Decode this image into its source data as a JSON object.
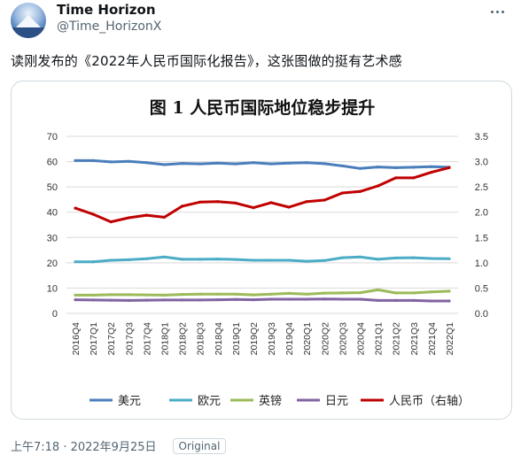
{
  "tweet": {
    "display_name": "Time Horizon",
    "handle": "@Time_HorizonX",
    "text": "读刚发布的《2022年人民币国际化报告》，这张图做的挺有艺术感",
    "time": "上午7:18 · 2022年9月25日",
    "source_badge": "Original",
    "more_icon": "ellipsis-icon"
  },
  "chart_data": {
    "type": "line",
    "title": "图 1  人民币国际地位稳步提升",
    "xlabel": "",
    "ylabel": "",
    "y_left_ticks": [
      "70",
      "60",
      "50",
      "40",
      "30",
      "20",
      "10",
      "0"
    ],
    "y_right_ticks": [
      "3.5",
      "3.0",
      "2.5",
      "2.0",
      "1.5",
      "1.0",
      "0.5",
      "0.0"
    ],
    "ylim_left": [
      0,
      70
    ],
    "ylim_right": [
      0,
      3.5
    ],
    "grid": true,
    "legend_position": "bottom",
    "x": [
      "2016Q4",
      "2017Q1",
      "2017Q2",
      "2017Q3",
      "2017Q4",
      "2018Q1",
      "2018Q2",
      "2018Q3",
      "2018Q4",
      "2019Q1",
      "2019Q2",
      "2019Q3",
      "2019Q4",
      "2020Q1",
      "2020Q2",
      "2020Q3",
      "2020Q4",
      "2021Q1",
      "2021Q2",
      "2021Q3",
      "2021Q4",
      "2022Q1"
    ],
    "series": [
      {
        "name": "美元",
        "axis": "left",
        "color": "#4a7ebb",
        "values": [
          60.4,
          60.4,
          59.9,
          60.1,
          59.6,
          58.8,
          59.3,
          59.1,
          59.4,
          59.1,
          59.6,
          59.1,
          59.4,
          59.6,
          59.2,
          58.3,
          57.3,
          57.9,
          57.6,
          57.8,
          58.0,
          57.8
        ]
      },
      {
        "name": "欧元",
        "axis": "left",
        "color": "#4bacc6",
        "values": [
          20.4,
          20.4,
          21.0,
          21.2,
          21.6,
          22.3,
          21.4,
          21.4,
          21.5,
          21.3,
          21.0,
          21.0,
          21.0,
          20.6,
          20.9,
          22.0,
          22.3,
          21.4,
          21.9,
          22.0,
          21.7,
          21.6
        ]
      },
      {
        "name": "英镑",
        "axis": "left",
        "color": "#9bbb59",
        "values": [
          7.2,
          7.2,
          7.4,
          7.4,
          7.3,
          7.2,
          7.5,
          7.6,
          7.6,
          7.6,
          7.3,
          7.6,
          7.9,
          7.6,
          8.0,
          8.1,
          8.2,
          9.3,
          8.1,
          8.1,
          8.5,
          8.8
        ]
      },
      {
        "name": "日元",
        "axis": "left",
        "color": "#8064a2",
        "values": [
          5.4,
          5.3,
          5.2,
          5.1,
          5.2,
          5.3,
          5.3,
          5.3,
          5.4,
          5.5,
          5.4,
          5.6,
          5.6,
          5.6,
          5.7,
          5.6,
          5.6,
          5.1,
          5.1,
          5.1,
          4.9,
          4.9
        ]
      },
      {
        "name": "人民币（右轴）",
        "axis": "right",
        "color": "#c00000",
        "values": [
          2.08,
          1.96,
          1.81,
          1.89,
          1.94,
          1.9,
          2.12,
          2.2,
          2.21,
          2.18,
          2.09,
          2.19,
          2.1,
          2.21,
          2.24,
          2.38,
          2.41,
          2.52,
          2.68,
          2.68,
          2.79,
          2.88
        ]
      }
    ]
  }
}
